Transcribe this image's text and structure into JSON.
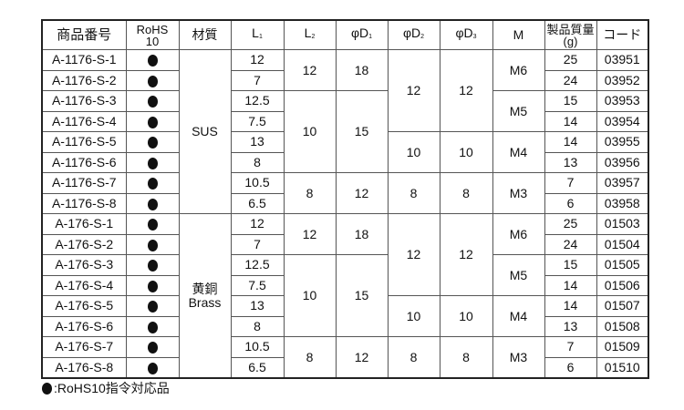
{
  "headers": {
    "product_no": "商品番号",
    "rohs": "RoHS\n10",
    "material": "材質",
    "l1": "L",
    "l1_sub": "1",
    "l2": "L",
    "l2_sub": "2",
    "d1": "φD",
    "d1_sub": "1",
    "d2": "φD",
    "d2_sub": "2",
    "d3": "φD",
    "d3_sub": "3",
    "m": "M",
    "weight": "製品質量",
    "weight_unit": "(g)",
    "code": "コード"
  },
  "rohs_icon": "filled-circle",
  "groups": [
    {
      "material": "SUS",
      "products": [
        "A-1176-S-1",
        "A-1176-S-2",
        "A-1176-S-3",
        "A-1176-S-4",
        "A-1176-S-5",
        "A-1176-S-6",
        "A-1176-S-7",
        "A-1176-S-8"
      ],
      "codes": [
        "03951",
        "03952",
        "03953",
        "03954",
        "03955",
        "03956",
        "03957",
        "03958"
      ]
    },
    {
      "material": "黄銅\nBrass",
      "products": [
        "A-176-S-1",
        "A-176-S-2",
        "A-176-S-3",
        "A-176-S-4",
        "A-176-S-5",
        "A-176-S-6",
        "A-176-S-7",
        "A-176-S-8"
      ],
      "codes": [
        "01503",
        "01504",
        "01505",
        "01506",
        "01507",
        "01508",
        "01509",
        "01510"
      ]
    }
  ],
  "l1": [
    "12",
    "7",
    "12.5",
    "7.5",
    "13",
    "8",
    "10.5",
    "6.5"
  ],
  "l2": [
    {
      "v": "12",
      "span": 2
    },
    {
      "v": "10",
      "span": 4
    },
    {
      "v": "8",
      "span": 2
    }
  ],
  "d1": [
    {
      "v": "18",
      "span": 2
    },
    {
      "v": "15",
      "span": 4
    },
    {
      "v": "12",
      "span": 2
    }
  ],
  "d2": [
    {
      "v": "12",
      "span": 4
    },
    {
      "v": "10",
      "span": 2
    },
    {
      "v": "8",
      "span": 2
    }
  ],
  "d3": [
    {
      "v": "12",
      "span": 4
    },
    {
      "v": "10",
      "span": 2
    },
    {
      "v": "8",
      "span": 2
    }
  ],
  "m": [
    {
      "v": "M6",
      "span": 2
    },
    {
      "v": "M5",
      "span": 2
    },
    {
      "v": "M4",
      "span": 2
    },
    {
      "v": "M3",
      "span": 2
    }
  ],
  "weight": [
    "25",
    "24",
    "15",
    "14",
    "14",
    "13",
    "7",
    "6"
  ],
  "legend": ":RoHS10指令対応品"
}
